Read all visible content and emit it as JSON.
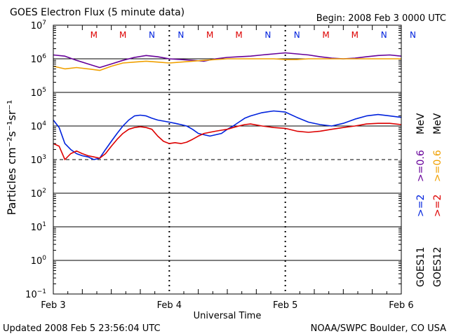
{
  "header": {
    "title": "GOES Electron Flux (5 minute data)",
    "begin": "Begin: 2008 Feb 3 0000 UTC"
  },
  "footer": {
    "updated": "Updated 2008 Feb  5 23:56:04 UTC",
    "credit": "NOAA/SWPC Boulder, CO USA"
  },
  "colors": {
    "purple": "#660099",
    "orange": "#f0a000",
    "blue": "#0022dd",
    "red": "#dd0000",
    "m_marker": "#dd0000",
    "n_marker": "#0022dd"
  },
  "chart_data": {
    "type": "line",
    "xlabel": "Universal Time",
    "ylabel": "Particles cm⁻²s⁻¹sr⁻¹",
    "x_ticks": [
      "Feb 3",
      "Feb 4",
      "Feb 5",
      "Feb 6"
    ],
    "xlim": [
      "2008-02-03T00:00",
      "2008-02-06T00:00"
    ],
    "y_scale": "log",
    "ylim": [
      0.1,
      10000000
    ],
    "y_tick_labels": [
      {
        "base": "10",
        "exp": "7"
      },
      {
        "base": "10",
        "exp": "6"
      },
      {
        "base": "10",
        "exp": "5"
      },
      {
        "base": "10",
        "exp": "4"
      },
      {
        "base": "10",
        "exp": "3"
      },
      {
        "base": "10",
        "exp": "2"
      },
      {
        "base": "10",
        "exp": "1"
      },
      {
        "base": "10",
        "exp": "0"
      },
      {
        "base": "10",
        "exp": "−1"
      }
    ],
    "markers_M_days": [
      0.35,
      0.6,
      1.35,
      1.6,
      2.35,
      2.6
    ],
    "markers_N_days": [
      0.85,
      1.1,
      1.85,
      2.1,
      2.85,
      3.1
    ],
    "marker_M_label": "M",
    "marker_N_label": "N",
    "right_labels": {
      "goes11": "GOES11",
      "goes12": "GOES12",
      "blue_threshold": ">=2",
      "red_threshold": ">=2",
      "purple_threshold": ">=0.6",
      "orange_threshold": ">=0.6",
      "unit": "MeV",
      "unit2": "MeV"
    },
    "series": [
      {
        "color_key": "purple",
        "x": [
          0,
          0.1,
          0.2,
          0.3,
          0.4,
          0.5,
          0.6,
          0.7,
          0.8,
          0.9,
          1.0,
          1.1,
          1.2,
          1.3,
          1.4,
          1.5,
          1.6,
          1.7,
          1.8,
          1.9,
          2.0,
          2.1,
          2.2,
          2.3,
          2.4,
          2.5,
          2.6,
          2.7,
          2.8,
          2.9,
          3.0
        ],
        "y": [
          1300000,
          1200000,
          900000,
          700000,
          550000,
          700000,
          900000,
          1100000,
          1250000,
          1150000,
          1000000,
          950000,
          900000,
          850000,
          1000000,
          1100000,
          1150000,
          1200000,
          1300000,
          1400000,
          1500000,
          1400000,
          1300000,
          1150000,
          1050000,
          1000000,
          1050000,
          1150000,
          1250000,
          1300000,
          1200000
        ]
      },
      {
        "color_key": "orange",
        "x": [
          0,
          0.1,
          0.2,
          0.3,
          0.4,
          0.5,
          0.6,
          0.7,
          0.8,
          0.9,
          1.0,
          1.1,
          1.2,
          1.3,
          1.4,
          1.5,
          1.6,
          1.7,
          1.8,
          1.9,
          2.0,
          2.1,
          2.2,
          2.3,
          2.4,
          2.5,
          2.6,
          2.7,
          2.8,
          2.9,
          3.0
        ],
        "y": [
          600000,
          500000,
          550000,
          500000,
          450000,
          600000,
          750000,
          800000,
          850000,
          800000,
          750000,
          800000,
          850000,
          900000,
          950000,
          1000000,
          1000000,
          1000000,
          1000000,
          1000000,
          950000,
          950000,
          1000000,
          1000000,
          1000000,
          1000000,
          1000000,
          1000000,
          1000000,
          1000000,
          1000000
        ]
      },
      {
        "color_key": "blue",
        "x": [
          0,
          0.05,
          0.1,
          0.15,
          0.2,
          0.25,
          0.3,
          0.35,
          0.4,
          0.45,
          0.5,
          0.55,
          0.6,
          0.65,
          0.7,
          0.75,
          0.8,
          0.85,
          0.9,
          0.95,
          1.0,
          1.05,
          1.1,
          1.15,
          1.2,
          1.25,
          1.3,
          1.35,
          1.4,
          1.45,
          1.5,
          1.55,
          1.6,
          1.65,
          1.7,
          1.8,
          1.9,
          2.0,
          2.1,
          2.2,
          2.3,
          2.4,
          2.5,
          2.6,
          2.7,
          2.8,
          2.9,
          3.0
        ],
        "y": [
          15000,
          9000,
          3000,
          2000,
          1500,
          1300,
          1200,
          1000,
          1100,
          2000,
          3500,
          6000,
          10000,
          15000,
          20000,
          21000,
          20000,
          17000,
          15000,
          14000,
          13000,
          12000,
          11000,
          10000,
          8000,
          6000,
          5500,
          5000,
          5500,
          6000,
          8000,
          10000,
          13000,
          17000,
          20000,
          25000,
          28000,
          26000,
          18000,
          13000,
          11000,
          10000,
          12000,
          16000,
          20000,
          22000,
          20000,
          18000
        ]
      },
      {
        "color_key": "red",
        "x": [
          0,
          0.05,
          0.1,
          0.15,
          0.2,
          0.25,
          0.3,
          0.35,
          0.4,
          0.45,
          0.5,
          0.55,
          0.6,
          0.65,
          0.7,
          0.75,
          0.8,
          0.85,
          0.9,
          0.95,
          1.0,
          1.05,
          1.1,
          1.15,
          1.2,
          1.25,
          1.3,
          1.35,
          1.4,
          1.45,
          1.5,
          1.55,
          1.6,
          1.65,
          1.7,
          1.8,
          1.9,
          2.0,
          2.1,
          2.2,
          2.3,
          2.4,
          2.5,
          2.6,
          2.7,
          2.8,
          2.9,
          3.0
        ],
        "y": [
          3000,
          2500,
          1000,
          1500,
          1800,
          1500,
          1300,
          1200,
          1100,
          1500,
          2500,
          4000,
          6000,
          8000,
          9000,
          9500,
          9000,
          8000,
          5000,
          3500,
          3000,
          3200,
          3000,
          3300,
          4000,
          5000,
          6000,
          6500,
          7000,
          7500,
          8000,
          9000,
          10000,
          11000,
          11500,
          10000,
          9000,
          8500,
          7000,
          6500,
          7000,
          8000,
          9000,
          10000,
          11500,
          12000,
          12000,
          11000
        ]
      }
    ]
  }
}
